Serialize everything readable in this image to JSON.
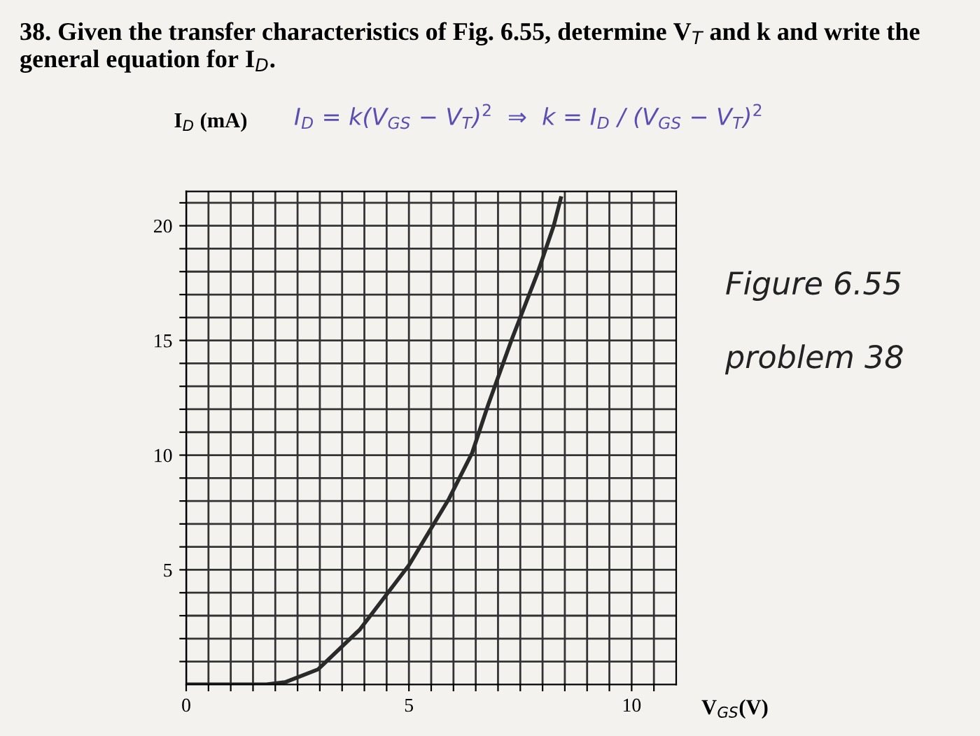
{
  "chart_data": {
    "type": "line",
    "title": "38. Given the transfer characteristics of Fig. 6.55, determine V$_{T}$ and k and write the general equation for I$_{D}$.",
    "xlabel": "V$_{GS}$(V)",
    "ylabel": "I$_{D}$ (mA)",
    "annotations": [
      "I$_{D}$ = k(V$_{GS}$ − V$_{T}$)$^{2}$  ⇒  k = I$_{D}$ / (V$_{GS}$ − V$_{T}$)$^{2}$",
      "Figure 6.55",
      "problem 38"
    ],
    "series": [
      {
        "color": "#2a2a2a",
        "x": [
          0,
          1.8,
          2.22,
          2.96,
          3.9,
          5.0,
          5.9,
          6.42,
          6.78,
          7.3,
          7.88,
          8.25,
          8.41
        ],
        "values": [
          0,
          0,
          0.1,
          0.66,
          2.4,
          5.2,
          8.1,
          10.1,
          12.2,
          15,
          17.9,
          20,
          21.2
        ]
      }
    ],
    "xlim": [
      0,
      11
    ],
    "ylim": [
      0,
      21.5
    ],
    "xticks": [
      0,
      {
        "value": 0.5,
        "label": null
      },
      {
        "value": 1,
        "label": null
      },
      {
        "value": 1.5,
        "label": null
      },
      {
        "value": 2,
        "label": null
      },
      {
        "value": 2.5,
        "label": null
      },
      {
        "value": 3,
        "label": null
      },
      {
        "value": 3.5,
        "label": null
      },
      {
        "value": 4,
        "label": null
      },
      {
        "value": 4.5,
        "label": null
      },
      5,
      {
        "value": 5.5,
        "label": null
      },
      {
        "value": 6,
        "label": null
      },
      {
        "value": 6.5,
        "label": null
      },
      {
        "value": 7,
        "label": null
      },
      {
        "value": 7.5,
        "label": null
      },
      {
        "value": 8,
        "label": null
      },
      {
        "value": 8.5,
        "label": null
      },
      {
        "value": 9,
        "label": null
      },
      {
        "value": 9.5,
        "label": null
      },
      10,
      {
        "value": 10.5,
        "label": null
      }
    ],
    "yticks": [
      {
        "value": 1,
        "label": null
      },
      {
        "value": 2,
        "label": null
      },
      {
        "value": 3,
        "label": null
      },
      {
        "value": 4,
        "label": null
      },
      5,
      {
        "value": 6,
        "label": null
      },
      {
        "value": 7,
        "label": null
      },
      {
        "value": 8,
        "label": null
      },
      {
        "value": 9,
        "label": null
      },
      10,
      {
        "value": 11,
        "label": null
      },
      {
        "value": 12,
        "label": null
      },
      {
        "value": 13,
        "label": null
      },
      {
        "value": 14,
        "label": null
      },
      15,
      {
        "value": 16,
        "label": null
      },
      {
        "value": 17,
        "label": null
      },
      {
        "value": 18,
        "label": null
      },
      {
        "value": 19,
        "label": null
      },
      20,
      {
        "value": 21,
        "label": null
      }
    ],
    "grid": true,
    "legend": false
  }
}
